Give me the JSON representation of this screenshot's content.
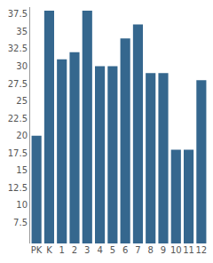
{
  "chart_data": {
    "type": "bar",
    "categories": [
      "PK",
      "K",
      "1",
      "2",
      "3",
      "4",
      "5",
      "6",
      "7",
      "8",
      "9",
      "10",
      "11",
      "12"
    ],
    "values": [
      20,
      38,
      31,
      32,
      38,
      30,
      30,
      34,
      36,
      29,
      29,
      18,
      18,
      28
    ],
    "color": "#35678e",
    "ylim": [
      4.5,
      38.5
    ],
    "yticks": [
      7.5,
      10,
      12.5,
      15,
      17.5,
      20,
      22.5,
      25,
      27.5,
      30,
      32.5,
      35,
      37.5
    ],
    "grid": false
  }
}
